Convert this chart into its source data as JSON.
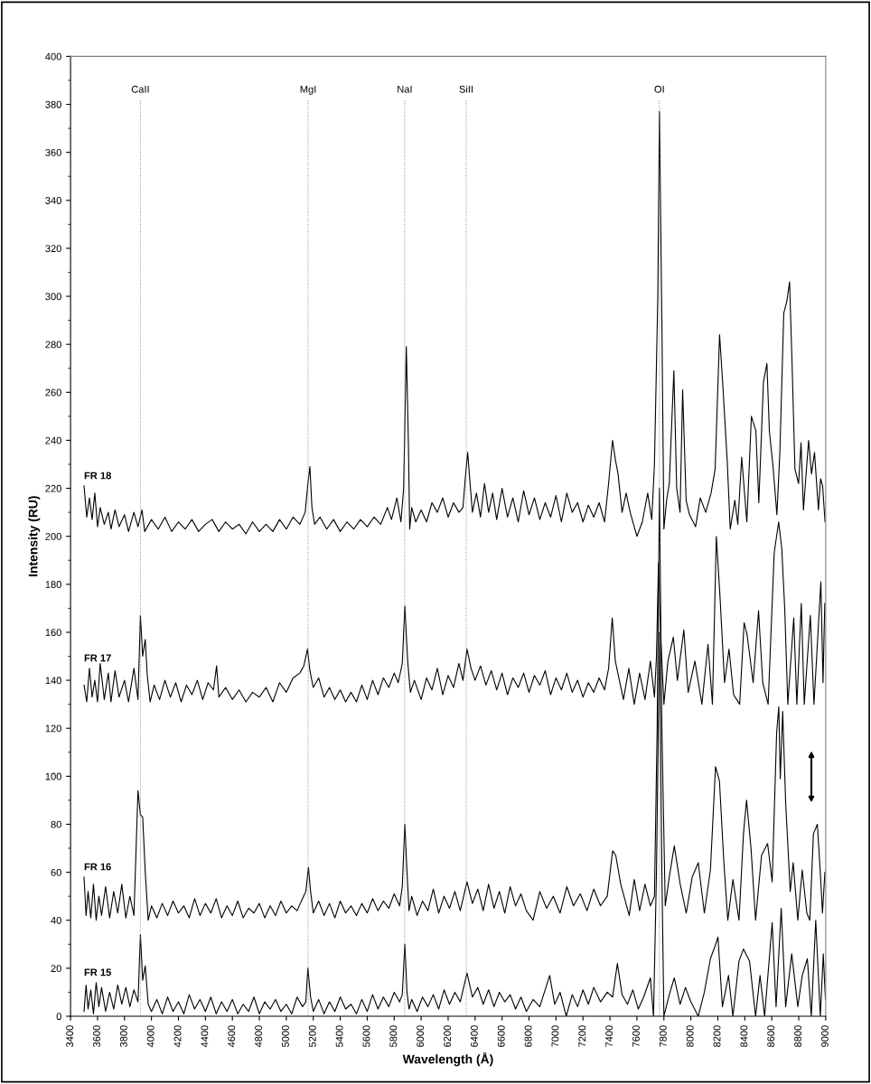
{
  "chart_data": {
    "type": "line",
    "xlabel": "Wavelength (Å)",
    "ylabel": "Intensity (RU)",
    "xlim": [
      3400,
      9000
    ],
    "xticks": [
      3400,
      3600,
      3800,
      4000,
      4200,
      4400,
      4600,
      4800,
      5000,
      5200,
      5400,
      5600,
      5800,
      6000,
      6200,
      6400,
      6600,
      6800,
      7000,
      7200,
      7400,
      7600,
      7800,
      8000,
      8200,
      8400,
      8600,
      8800,
      9000
    ],
    "ylim": [
      0,
      400
    ],
    "yticks": [
      0,
      20,
      40,
      60,
      80,
      100,
      120,
      140,
      160,
      180,
      200,
      220,
      240,
      260,
      280,
      300,
      320,
      340,
      360,
      380,
      400
    ],
    "grid": false,
    "legend": false,
    "marker": "none",
    "line_style": "solid",
    "ref_lines": [
      {
        "axis": "x",
        "value": 3918,
        "label": "CaII",
        "color": "#808080",
        "line_style": "dotted"
      },
      {
        "axis": "x",
        "value": 5162,
        "label": "MgI",
        "color": "#808080",
        "line_style": "dotted"
      },
      {
        "axis": "x",
        "value": 5878,
        "label": "NaI",
        "color": "#808080",
        "line_style": "dotted"
      },
      {
        "axis": "x",
        "value": 6334,
        "label": "SiII",
        "color": "#808080",
        "line_style": "dotted"
      },
      {
        "axis": "x",
        "value": 7767,
        "label": "OI",
        "color": "#808080",
        "line_style": "dotted"
      }
    ],
    "series": [
      {
        "name": "FR 18",
        "color": "#000000",
        "x": [
          3500,
          3520,
          3540,
          3560,
          3580,
          3600,
          3620,
          3650,
          3680,
          3700,
          3730,
          3760,
          3800,
          3830,
          3870,
          3900,
          3930,
          3950,
          4000,
          4050,
          4100,
          4150,
          4200,
          4250,
          4300,
          4350,
          4400,
          4450,
          4500,
          4550,
          4600,
          4650,
          4700,
          4750,
          4800,
          4850,
          4900,
          4950,
          5000,
          5050,
          5100,
          5140,
          5160,
          5175,
          5190,
          5210,
          5250,
          5300,
          5350,
          5400,
          5450,
          5500,
          5550,
          5600,
          5650,
          5700,
          5750,
          5780,
          5820,
          5850,
          5870,
          5890,
          5905,
          5915,
          5930,
          5960,
          6000,
          6040,
          6080,
          6120,
          6160,
          6200,
          6240,
          6280,
          6310,
          6330,
          6345,
          6360,
          6380,
          6410,
          6440,
          6470,
          6500,
          6530,
          6560,
          6600,
          6640,
          6680,
          6720,
          6760,
          6800,
          6840,
          6880,
          6920,
          6960,
          7000,
          7040,
          7080,
          7120,
          7160,
          7200,
          7240,
          7280,
          7320,
          7360,
          7390,
          7419,
          7440,
          7460,
          7490,
          7520,
          7550,
          7600,
          7640,
          7680,
          7710,
          7730,
          7755,
          7767,
          7785,
          7800,
          7820,
          7840,
          7874,
          7895,
          7920,
          7939,
          7965,
          7990,
          8035,
          8070,
          8110,
          8150,
          8180,
          8213,
          8236,
          8270,
          8292,
          8326,
          8348,
          8377,
          8415,
          8449,
          8482,
          8504,
          8538,
          8564,
          8582,
          8611,
          8638,
          8660,
          8689,
          8712,
          8732,
          8750,
          8772,
          8799,
          8817,
          8835,
          8873,
          8895,
          8917,
          8946,
          8962,
          8977,
          8995
        ],
        "values": [
          221,
          208,
          216,
          207,
          218,
          204,
          212,
          205,
          210,
          203,
          211,
          204,
          209,
          202,
          210,
          204,
          211,
          202,
          207,
          203,
          208,
          202,
          206,
          203,
          207,
          202,
          205,
          207,
          202,
          206,
          203,
          205,
          201,
          206,
          202,
          205,
          202,
          207,
          203,
          208,
          205,
          210,
          222,
          229,
          212,
          205,
          208,
          203,
          207,
          202,
          206,
          203,
          207,
          204,
          208,
          205,
          212,
          207,
          216,
          206,
          220,
          279,
          240,
          203,
          212,
          206,
          211,
          206,
          214,
          210,
          216,
          208,
          214,
          210,
          212,
          226,
          235,
          224,
          210,
          218,
          208,
          222,
          210,
          218,
          207,
          220,
          208,
          216,
          206,
          219,
          209,
          216,
          207,
          214,
          208,
          217,
          206,
          218,
          210,
          214,
          206,
          213,
          208,
          214,
          206,
          222,
          240,
          232,
          226,
          210,
          218,
          210,
          200,
          206,
          218,
          207,
          230,
          300,
          377,
          290,
          203,
          215,
          222,
          269,
          220,
          210,
          261,
          215,
          209,
          204,
          216,
          210,
          218,
          228,
          284,
          264,
          231,
          203,
          215,
          205,
          233,
          206,
          250,
          244,
          214,
          264,
          272,
          244,
          228,
          209,
          235,
          293,
          298,
          306,
          273,
          228,
          222,
          239,
          211,
          240,
          226,
          235,
          211,
          224,
          221,
          206
        ]
      },
      {
        "name": "FR 17",
        "color": "#000000",
        "x": [
          3500,
          3520,
          3540,
          3560,
          3580,
          3600,
          3620,
          3650,
          3680,
          3700,
          3730,
          3760,
          3800,
          3830,
          3870,
          3900,
          3918,
          3935,
          3954,
          3969,
          3990,
          4020,
          4060,
          4100,
          4140,
          4180,
          4220,
          4260,
          4300,
          4340,
          4380,
          4420,
          4460,
          4483,
          4500,
          4550,
          4600,
          4650,
          4700,
          4750,
          4800,
          4850,
          4900,
          4950,
          5000,
          5050,
          5100,
          5130,
          5157,
          5175,
          5200,
          5240,
          5280,
          5320,
          5360,
          5400,
          5440,
          5480,
          5520,
          5560,
          5600,
          5640,
          5680,
          5720,
          5760,
          5800,
          5830,
          5860,
          5879,
          5900,
          5920,
          5950,
          6000,
          6040,
          6080,
          6120,
          6160,
          6200,
          6240,
          6280,
          6310,
          6340,
          6370,
          6400,
          6440,
          6480,
          6520,
          6560,
          6600,
          6640,
          6680,
          6720,
          6760,
          6800,
          6840,
          6880,
          6920,
          6960,
          7000,
          7040,
          7080,
          7120,
          7160,
          7200,
          7240,
          7280,
          7320,
          7360,
          7390,
          7417,
          7440,
          7470,
          7500,
          7540,
          7580,
          7620,
          7660,
          7700,
          7730,
          7745,
          7760,
          7775,
          7800,
          7830,
          7870,
          7900,
          7948,
          7980,
          8030,
          8082,
          8127,
          8160,
          8189,
          8216,
          8250,
          8283,
          8317,
          8362,
          8395,
          8417,
          8462,
          8502,
          8533,
          8573,
          8618,
          8651,
          8674,
          8696,
          8719,
          8763,
          8786,
          8819,
          8841,
          8886,
          8913,
          8964,
          8980,
          8993
        ],
        "values": [
          138,
          131,
          145,
          133,
          140,
          131,
          147,
          132,
          143,
          131,
          144,
          133,
          140,
          131,
          145,
          132,
          167,
          150,
          157,
          142,
          131,
          138,
          132,
          140,
          133,
          139,
          131,
          138,
          134,
          140,
          132,
          139,
          136,
          146,
          133,
          137,
          132,
          136,
          131,
          135,
          133,
          137,
          131,
          139,
          135,
          141,
          143,
          146,
          153,
          144,
          137,
          141,
          133,
          137,
          132,
          136,
          131,
          135,
          131,
          138,
          132,
          140,
          134,
          141,
          137,
          143,
          139,
          147,
          171,
          148,
          135,
          140,
          132,
          141,
          136,
          145,
          134,
          142,
          137,
          147,
          140,
          153,
          145,
          140,
          146,
          138,
          144,
          136,
          143,
          134,
          141,
          137,
          143,
          135,
          142,
          138,
          144,
          134,
          141,
          136,
          143,
          135,
          140,
          133,
          139,
          135,
          141,
          136,
          145,
          166,
          148,
          140,
          132,
          145,
          130,
          143,
          132,
          148,
          133,
          150,
          189,
          160,
          130,
          148,
          158,
          140,
          161,
          135,
          148,
          130,
          155,
          130,
          200,
          175,
          139,
          153,
          134,
          130,
          164,
          159,
          139,
          169,
          139,
          130,
          193,
          206,
          195,
          170,
          130,
          166,
          130,
          172,
          130,
          167,
          130,
          181,
          139,
          172
        ]
      },
      {
        "name": "FR 16",
        "color": "#000000",
        "x": [
          3500,
          3515,
          3530,
          3550,
          3570,
          3590,
          3610,
          3630,
          3660,
          3690,
          3720,
          3750,
          3780,
          3810,
          3840,
          3870,
          3900,
          3918,
          3935,
          3954,
          3976,
          4000,
          4040,
          4080,
          4120,
          4160,
          4200,
          4240,
          4280,
          4320,
          4360,
          4400,
          4440,
          4480,
          4520,
          4560,
          4600,
          4640,
          4680,
          4720,
          4760,
          4800,
          4840,
          4880,
          4920,
          4960,
          5000,
          5040,
          5080,
          5120,
          5145,
          5164,
          5180,
          5200,
          5240,
          5280,
          5320,
          5360,
          5400,
          5440,
          5480,
          5520,
          5560,
          5600,
          5640,
          5680,
          5720,
          5760,
          5800,
          5840,
          5860,
          5879,
          5895,
          5910,
          5930,
          5970,
          6010,
          6050,
          6090,
          6130,
          6170,
          6210,
          6250,
          6290,
          6340,
          6380,
          6420,
          6460,
          6500,
          6540,
          6580,
          6620,
          6660,
          6700,
          6740,
          6780,
          6830,
          6880,
          6930,
          6980,
          7030,
          7080,
          7130,
          7180,
          7230,
          7280,
          7330,
          7380,
          7420,
          7443,
          7480,
          7543,
          7580,
          7620,
          7660,
          7700,
          7730,
          7750,
          7767,
          7785,
          7810,
          7840,
          7877,
          7921,
          7966,
          8010,
          8055,
          8100,
          8145,
          8183,
          8212,
          8245,
          8274,
          8312,
          8357,
          8390,
          8413,
          8446,
          8480,
          8524,
          8569,
          8603,
          8636,
          8652,
          8663,
          8681,
          8703,
          8737,
          8759,
          8793,
          8826,
          8860,
          8882,
          8909,
          8938,
          8960,
          8976,
          8994
        ],
        "values": [
          58,
          42,
          52,
          41,
          55,
          40,
          50,
          42,
          54,
          41,
          52,
          43,
          55,
          41,
          50,
          42,
          94,
          84,
          83,
          60,
          40,
          46,
          41,
          47,
          42,
          48,
          43,
          46,
          41,
          49,
          42,
          47,
          43,
          49,
          41,
          46,
          42,
          48,
          41,
          45,
          43,
          47,
          41,
          46,
          42,
          48,
          43,
          46,
          44,
          49,
          52,
          62,
          52,
          43,
          48,
          42,
          47,
          41,
          48,
          43,
          46,
          42,
          47,
          43,
          49,
          44,
          48,
          45,
          51,
          46,
          54,
          80,
          60,
          44,
          50,
          42,
          48,
          44,
          53,
          43,
          50,
          45,
          52,
          44,
          56,
          47,
          53,
          44,
          55,
          45,
          52,
          43,
          54,
          46,
          51,
          44,
          40,
          52,
          45,
          50,
          43,
          54,
          46,
          51,
          44,
          53,
          46,
          50,
          69,
          67,
          55,
          42,
          57,
          44,
          55,
          46,
          50,
          120,
          220,
          120,
          46,
          58,
          71,
          55,
          43,
          58,
          64,
          43,
          61,
          104,
          98,
          64,
          40,
          57,
          40,
          76,
          90,
          70,
          40,
          67,
          72,
          56,
          118,
          129,
          99,
          127,
          89,
          52,
          64,
          40,
          61,
          43,
          40,
          76,
          80,
          60,
          43,
          60
        ]
      },
      {
        "name": "FR 15",
        "color": "#000000",
        "x": [
          3500,
          3515,
          3530,
          3550,
          3570,
          3590,
          3610,
          3630,
          3660,
          3690,
          3720,
          3750,
          3780,
          3810,
          3840,
          3870,
          3900,
          3918,
          3935,
          3954,
          3976,
          4000,
          4040,
          4080,
          4120,
          4160,
          4200,
          4240,
          4280,
          4320,
          4360,
          4400,
          4440,
          4480,
          4520,
          4560,
          4600,
          4640,
          4680,
          4720,
          4760,
          4800,
          4840,
          4880,
          4920,
          4960,
          5000,
          5040,
          5080,
          5120,
          5145,
          5160,
          5180,
          5200,
          5240,
          5280,
          5320,
          5360,
          5400,
          5440,
          5480,
          5520,
          5560,
          5600,
          5640,
          5680,
          5720,
          5760,
          5800,
          5840,
          5860,
          5879,
          5895,
          5910,
          5930,
          5970,
          6010,
          6050,
          6090,
          6130,
          6170,
          6210,
          6250,
          6290,
          6340,
          6380,
          6420,
          6460,
          6500,
          6540,
          6580,
          6620,
          6660,
          6700,
          6740,
          6780,
          6830,
          6880,
          6953,
          6990,
          7030,
          7076,
          7120,
          7160,
          7200,
          7240,
          7280,
          7330,
          7380,
          7420,
          7455,
          7490,
          7530,
          7570,
          7610,
          7650,
          7700,
          7723,
          7745,
          7767,
          7785,
          7800,
          7840,
          7877,
          7920,
          7960,
          8000,
          8055,
          8100,
          8145,
          8178,
          8201,
          8234,
          8279,
          8312,
          8357,
          8390,
          8435,
          8480,
          8513,
          8547,
          8603,
          8632,
          8670,
          8703,
          8748,
          8793,
          8826,
          8864,
          8893,
          8926,
          8960,
          8982,
          8998
        ],
        "values": [
          2,
          13,
          3,
          11,
          1,
          14,
          4,
          12,
          2,
          10,
          3,
          13,
          5,
          12,
          4,
          11,
          6,
          34,
          15,
          21,
          5,
          2,
          7,
          1,
          8,
          2,
          6,
          1,
          9,
          3,
          7,
          2,
          8,
          1,
          6,
          2,
          7,
          1,
          5,
          2,
          8,
          1,
          6,
          3,
          7,
          2,
          5,
          1,
          8,
          4,
          6,
          20,
          8,
          2,
          7,
          1,
          6,
          2,
          8,
          3,
          5,
          1,
          7,
          2,
          9,
          3,
          8,
          4,
          10,
          6,
          9,
          30,
          10,
          3,
          7,
          2,
          8,
          4,
          9,
          3,
          11,
          5,
          10,
          6,
          18,
          8,
          12,
          5,
          11,
          4,
          10,
          6,
          9,
          3,
          8,
          2,
          7,
          4,
          17,
          5,
          10,
          0,
          9,
          4,
          11,
          5,
          12,
          6,
          10,
          8,
          22,
          9,
          5,
          11,
          3,
          8,
          16,
          0,
          60,
          160,
          60,
          0,
          9,
          16,
          5,
          12,
          6,
          0,
          10,
          24,
          29,
          33,
          4,
          17,
          0,
          23,
          28,
          23,
          0,
          17,
          0,
          39,
          4,
          45,
          4,
          26,
          4,
          17,
          24,
          0,
          40,
          0,
          26,
          7
        ]
      }
    ]
  }
}
